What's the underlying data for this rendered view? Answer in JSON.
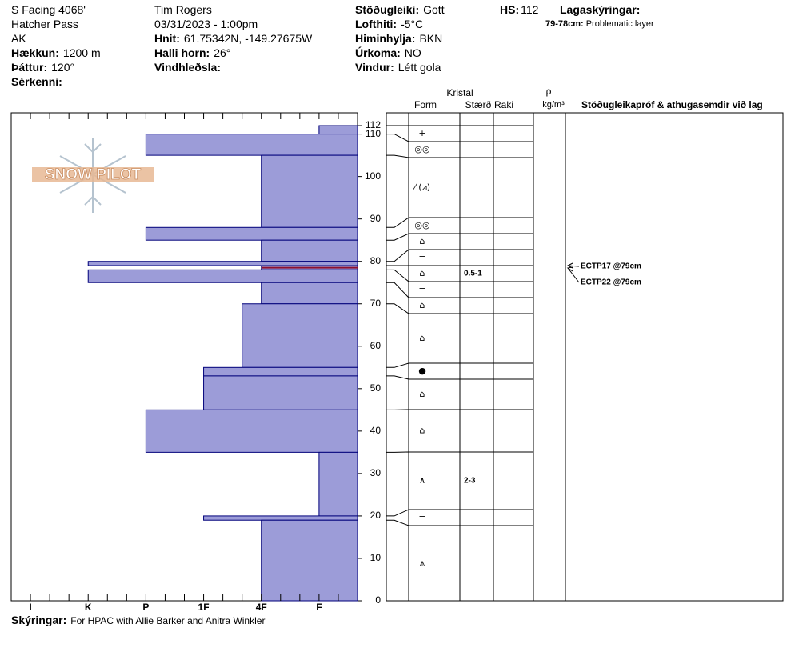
{
  "header": {
    "site": "S Facing 4068'",
    "area": "Hatcher Pass",
    "state": "AK",
    "elevation": {
      "label": "Hækkun:",
      "value": "1200 m"
    },
    "aspect": {
      "label": "Þáttur:",
      "value": "120°"
    },
    "features": {
      "label": "Sérkenni:"
    },
    "observer": "Tim Rogers",
    "datetime": "03/31/2023 - 1:00pm",
    "coords": {
      "label": "Hnit:",
      "value": "61.75342N, -149.27675W"
    },
    "slope": {
      "label": "Halli horn:",
      "value": "26°"
    },
    "wind_loading": {
      "label": "Vindhleðsla:"
    },
    "stability": {
      "label": "Stöðugleiki:",
      "value": "Gott"
    },
    "air_temp": {
      "label": "Lofthiti:",
      "value": "-5°C"
    },
    "sky": {
      "label": "Himinhylja:",
      "value": "BKN"
    },
    "precip": {
      "label": "Úrkoma:",
      "value": "NO"
    },
    "wind": {
      "label": "Vindur:",
      "value": "Létt gola"
    },
    "hs": {
      "label": "HS:",
      "value": 112
    },
    "layer_notes": {
      "title": "Lagaskýringar:",
      "items": [
        {
          "label": "79-78cm:",
          "value": "Problematic layer"
        }
      ]
    }
  },
  "footer": {
    "label": "Skýringar:",
    "value": "For HPAC with Allie Barker and Anitra Winkler"
  },
  "columns": {
    "crystal": "Kristal",
    "form": "Form",
    "size": "Stærð",
    "moisture": "Raki",
    "density_symbol": "ρ",
    "density_unit": "kg/m³",
    "comments": "Stöðugleikapróf & athugasemdir við lag"
  },
  "tests": [
    {
      "label": "ECTP17 @79cm",
      "depth": 79
    },
    {
      "label": "ECTP22 @79cm",
      "depth": 79
    }
  ],
  "chart_data": {
    "type": "snow-profile",
    "logo": "SNOW PILOT",
    "ylim": [
      0,
      112
    ],
    "yticks": [
      0,
      10,
      20,
      30,
      40,
      50,
      60,
      70,
      80,
      90,
      100,
      110,
      112
    ],
    "xlim": [
      0,
      18
    ],
    "xticks": [
      {
        "value": 1,
        "label": "I"
      },
      {
        "value": 4,
        "label": "K"
      },
      {
        "value": 7,
        "label": "P"
      },
      {
        "value": 10,
        "label": "1F"
      },
      {
        "value": 13,
        "label": "4F"
      },
      {
        "value": 16,
        "label": "F"
      }
    ],
    "xminorticks": [
      1,
      2,
      3,
      4,
      5,
      6,
      7,
      8,
      9,
      10,
      11,
      12,
      13,
      14,
      15,
      16,
      17
    ],
    "color": "#9c9cd8",
    "edge_color": "#00007a",
    "problematic_color": "#8b1030",
    "layers": [
      {
        "top": 112,
        "bottom": 110,
        "hardness": 16,
        "form": "+"
      },
      {
        "top": 110,
        "bottom": 105,
        "hardness": 7,
        "form": "◎◎"
      },
      {
        "top": 105,
        "bottom": 88,
        "hardness": 13,
        "form": "⁄ (⩘)"
      },
      {
        "top": 88,
        "bottom": 85,
        "hardness": 7,
        "form": "◎◎"
      },
      {
        "top": 85,
        "bottom": 80,
        "hardness": 13,
        "form": "⌂"
      },
      {
        "top": 80,
        "bottom": 79,
        "hardness": 4,
        "form": "="
      },
      {
        "top": 79,
        "bottom": 78,
        "hardness": 13,
        "form": "⌂",
        "size": "0.5-1",
        "problematic": true
      },
      {
        "top": 78,
        "bottom": 75,
        "hardness": 4,
        "form": "="
      },
      {
        "top": 75,
        "bottom": 70,
        "hardness": 13,
        "form": "⌂"
      },
      {
        "top": 70,
        "bottom": 55,
        "hardness": 12,
        "form": "⌂"
      },
      {
        "top": 55,
        "bottom": 53,
        "hardness": 10,
        "form": "●"
      },
      {
        "top": 53,
        "bottom": 45,
        "hardness": 10,
        "form": "⌂"
      },
      {
        "top": 45,
        "bottom": 35,
        "hardness": 7,
        "form": "⌂"
      },
      {
        "top": 35,
        "bottom": 20,
        "hardness": 16,
        "form": "∧",
        "size": "2-3"
      },
      {
        "top": 20,
        "bottom": 19,
        "hardness": 10,
        "form": "="
      },
      {
        "top": 19,
        "bottom": 0,
        "hardness": 13,
        "form": "⩚"
      }
    ]
  }
}
